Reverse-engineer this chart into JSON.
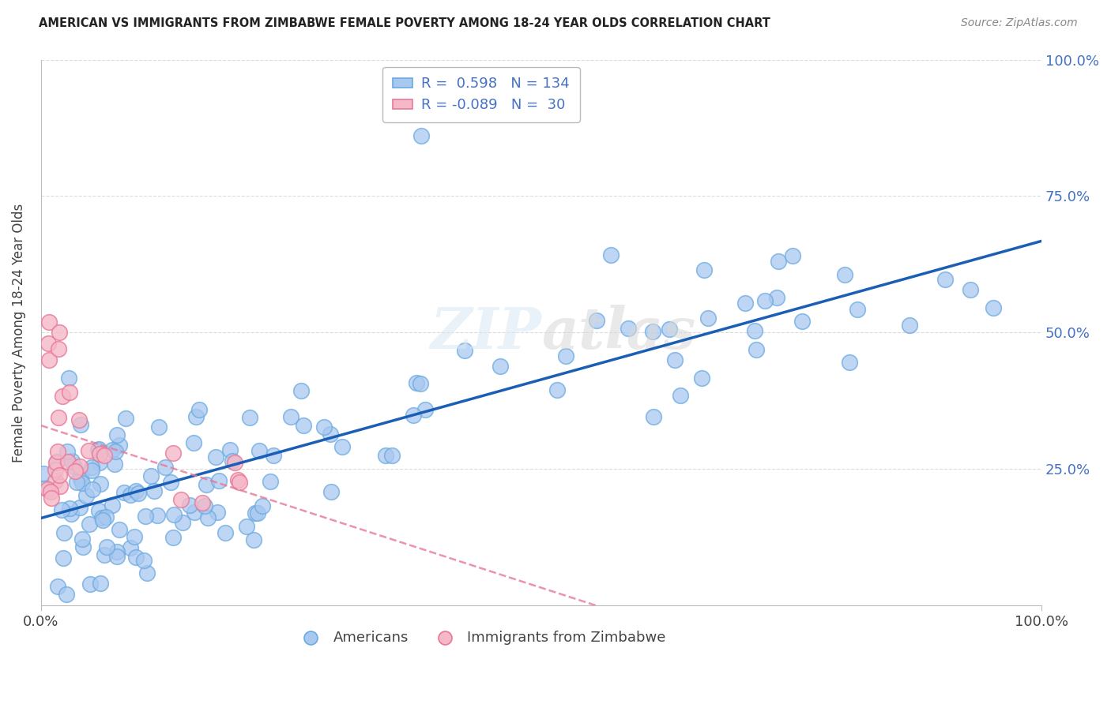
{
  "title": "AMERICAN VS IMMIGRANTS FROM ZIMBABWE FEMALE POVERTY AMONG 18-24 YEAR OLDS CORRELATION CHART",
  "source": "Source: ZipAtlas.com",
  "ylabel": "Female Poverty Among 18-24 Year Olds",
  "xlim": [
    0,
    1
  ],
  "ylim": [
    0,
    1
  ],
  "american_color": "#a8c8f0",
  "american_edge_color": "#6aaae0",
  "zimbabwe_color": "#f5b8c8",
  "zimbabwe_edge_color": "#e87898",
  "american_line_color": "#1a5fb5",
  "zimbabwe_line_color": "#e87898",
  "legend_R_american": "0.598",
  "legend_N_american": "134",
  "legend_R_zimbabwe": "-0.089",
  "legend_N_zimbabwe": "30",
  "background_color": "#ffffff",
  "grid_color": "#cccccc",
  "american_line_intercept": 0.15,
  "american_line_slope": 0.5,
  "zimbabwe_line_intercept": 0.3,
  "zimbabwe_line_slope": -0.55
}
